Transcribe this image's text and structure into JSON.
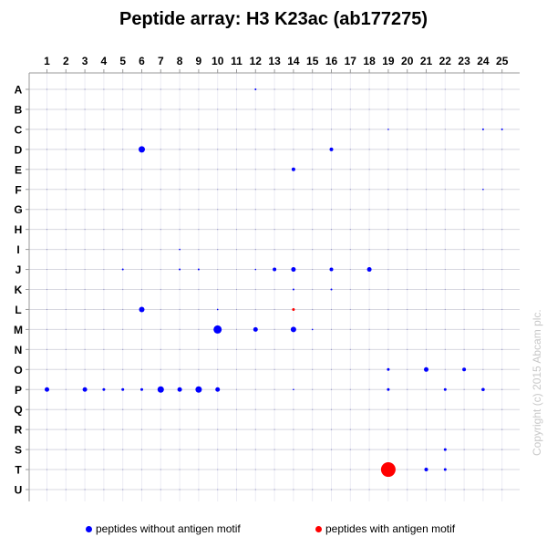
{
  "chart_data": {
    "type": "scatter",
    "title": "Peptide array:  H3 K23ac (ab177275)",
    "x_categories": [
      "1",
      "2",
      "3",
      "4",
      "5",
      "6",
      "7",
      "8",
      "9",
      "10",
      "11",
      "12",
      "13",
      "14",
      "15",
      "16",
      "17",
      "18",
      "19",
      "20",
      "21",
      "22",
      "23",
      "24",
      "25"
    ],
    "y_categories": [
      "A",
      "B",
      "C",
      "D",
      "E",
      "F",
      "G",
      "H",
      "I",
      "J",
      "K",
      "L",
      "M",
      "N",
      "O",
      "P",
      "Q",
      "R",
      "S",
      "T",
      "U"
    ],
    "grid": true,
    "legend_position": "bottom",
    "colors": {
      "without_motif": "#0000ff",
      "with_motif": "#ff0000"
    },
    "series": [
      {
        "name": "peptides without antigen motif",
        "points": [
          {
            "col": "12",
            "row": "A",
            "size": 1
          },
          {
            "col": "19",
            "row": "C",
            "size": 0.5
          },
          {
            "col": "24",
            "row": "C",
            "size": 1
          },
          {
            "col": "25",
            "row": "C",
            "size": 1
          },
          {
            "col": "6",
            "row": "D",
            "size": 3.5
          },
          {
            "col": "16",
            "row": "D",
            "size": 2
          },
          {
            "col": "14",
            "row": "E",
            "size": 2
          },
          {
            "col": "24",
            "row": "F",
            "size": 0.5
          },
          {
            "col": "8",
            "row": "I",
            "size": 0.5
          },
          {
            "col": "5",
            "row": "J",
            "size": 1
          },
          {
            "col": "8",
            "row": "J",
            "size": 1
          },
          {
            "col": "9",
            "row": "J",
            "size": 1
          },
          {
            "col": "12",
            "row": "J",
            "size": 0.5
          },
          {
            "col": "13",
            "row": "J",
            "size": 2
          },
          {
            "col": "14",
            "row": "J",
            "size": 2.5
          },
          {
            "col": "16",
            "row": "J",
            "size": 2
          },
          {
            "col": "18",
            "row": "J",
            "size": 2.5
          },
          {
            "col": "14",
            "row": "K",
            "size": 1
          },
          {
            "col": "16",
            "row": "K",
            "size": 1
          },
          {
            "col": "6",
            "row": "L",
            "size": 3
          },
          {
            "col": "10",
            "row": "L",
            "size": 0.5
          },
          {
            "col": "10",
            "row": "M",
            "size": 4.5
          },
          {
            "col": "12",
            "row": "M",
            "size": 2.5
          },
          {
            "col": "14",
            "row": "M",
            "size": 3
          },
          {
            "col": "15",
            "row": "M",
            "size": 0.8
          },
          {
            "col": "19",
            "row": "O",
            "size": 1.5
          },
          {
            "col": "21",
            "row": "O",
            "size": 2.5
          },
          {
            "col": "23",
            "row": "O",
            "size": 2
          },
          {
            "col": "1",
            "row": "P",
            "size": 2.5
          },
          {
            "col": "3",
            "row": "P",
            "size": 2.5
          },
          {
            "col": "4",
            "row": "P",
            "size": 1.5
          },
          {
            "col": "5",
            "row": "P",
            "size": 1.5
          },
          {
            "col": "6",
            "row": "P",
            "size": 1.5
          },
          {
            "col": "7",
            "row": "P",
            "size": 3.5
          },
          {
            "col": "8",
            "row": "P",
            "size": 2.5
          },
          {
            "col": "9",
            "row": "P",
            "size": 3.5
          },
          {
            "col": "10",
            "row": "P",
            "size": 2.5
          },
          {
            "col": "14",
            "row": "P",
            "size": 0.8
          },
          {
            "col": "19",
            "row": "P",
            "size": 1.5
          },
          {
            "col": "22",
            "row": "P",
            "size": 1.5
          },
          {
            "col": "24",
            "row": "P",
            "size": 1.8
          },
          {
            "col": "22",
            "row": "S",
            "size": 1.5
          },
          {
            "col": "21",
            "row": "T",
            "size": 2
          },
          {
            "col": "22",
            "row": "T",
            "size": 1.5
          }
        ]
      },
      {
        "name": "peptides with antigen motif",
        "points": [
          {
            "col": "14",
            "row": "L",
            "size": 1.5
          },
          {
            "col": "19",
            "row": "T",
            "size": 8
          }
        ]
      }
    ]
  },
  "legend": {
    "without_label": "peptides without antigen motif",
    "with_label": "peptides with antigen motif"
  },
  "copyright": "Copyright (c) 2015 Abcam plc."
}
